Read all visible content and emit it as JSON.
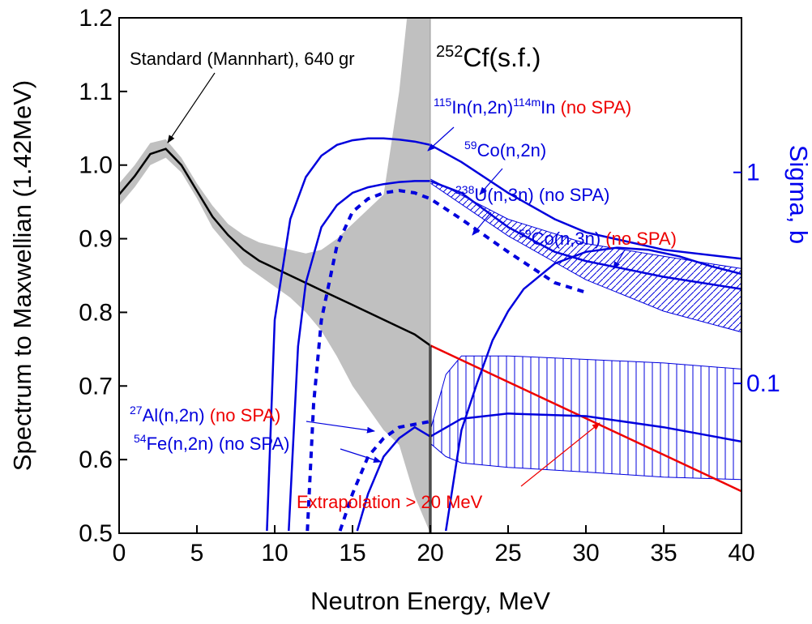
{
  "chart_data": {
    "type": "line",
    "title": {
      "sup": "252",
      "text": "Cf(s.f.)"
    },
    "xlabel": "Neutron Energy,  MeV",
    "ylabel": "Spectrum to Maxwellian (1.42MeV)",
    "y2label": "Sigma, b",
    "xlim": [
      0,
      40
    ],
    "ylim": [
      0.5,
      1.2
    ],
    "y2lim": [
      0.0195,
      5.4
    ],
    "y2scale": "log",
    "xticks": [
      0,
      5,
      10,
      15,
      20,
      25,
      30,
      35,
      40
    ],
    "yticks": [
      0.5,
      0.6,
      0.7,
      0.8,
      0.9,
      {
        "value": 1,
        "label": "1.0"
      },
      1.1,
      1.2
    ],
    "y2ticks": [
      1,
      0.1
    ],
    "y2color": "#0000ee",
    "series": [
      {
        "color": "#000000",
        "dash": "solid",
        "axis": "y",
        "x": [
          0,
          1,
          2,
          3,
          4,
          5,
          6,
          7,
          8,
          9,
          10,
          11,
          12,
          13,
          14,
          15,
          16,
          17,
          18,
          19,
          20
        ],
        "values": [
          0.96,
          0.985,
          1.015,
          1.022,
          1.0,
          0.965,
          0.93,
          0.905,
          0.885,
          0.87,
          0.86,
          0.85,
          0.84,
          0.83,
          0.82,
          0.81,
          0.8,
          0.79,
          0.78,
          0.77,
          0.755
        ]
      },
      {
        "color": "#ee0000",
        "dash": "solid",
        "axis": "y",
        "x": [
          20,
          40
        ],
        "values": [
          0.755,
          0.557
        ]
      },
      {
        "color": "#0000dd",
        "dash": "solid",
        "axis": "y2",
        "x": [
          9.5,
          10,
          11,
          12,
          13,
          14,
          15,
          16,
          17,
          18,
          19,
          20,
          22,
          25,
          28,
          30,
          35,
          40
        ],
        "values": [
          0.02,
          0.2,
          0.6,
          0.95,
          1.2,
          1.35,
          1.42,
          1.45,
          1.45,
          1.43,
          1.4,
          1.35,
          1.12,
          0.8,
          0.6,
          0.52,
          0.43,
          0.39
        ]
      },
      {
        "color": "#0000dd",
        "dash": "solid",
        "axis": "y2",
        "x": [
          10.9,
          11.5,
          12,
          13,
          14,
          15,
          16,
          17,
          18,
          19,
          20,
          22,
          25,
          28,
          30,
          35,
          40
        ],
        "values": [
          0.02,
          0.15,
          0.3,
          0.55,
          0.7,
          0.8,
          0.85,
          0.88,
          0.9,
          0.91,
          0.91,
          0.8,
          0.55,
          0.42,
          0.38,
          0.32,
          0.28
        ]
      },
      {
        "color": "#0000dd",
        "dash": "dotted",
        "axis": "y2",
        "x": [
          12.1,
          12.5,
          13,
          14,
          15,
          16,
          17,
          18,
          19,
          20,
          22,
          25,
          28,
          30
        ],
        "values": [
          0.02,
          0.08,
          0.2,
          0.45,
          0.65,
          0.75,
          0.8,
          0.82,
          0.8,
          0.75,
          0.6,
          0.42,
          0.3,
          0.27
        ]
      },
      {
        "color": "#0000dd",
        "dash": "solid",
        "axis": "y2",
        "x": [
          21,
          22,
          23,
          24,
          25,
          26,
          28,
          30,
          32,
          34,
          36,
          38,
          40
        ],
        "values": [
          0.02,
          0.06,
          0.1,
          0.16,
          0.22,
          0.28,
          0.37,
          0.42,
          0.44,
          0.43,
          0.4,
          0.36,
          0.33
        ]
      },
      {
        "color": "#0000dd",
        "dash": "solid",
        "axis": "y2",
        "x": [
          15.3,
          16,
          17,
          18,
          19,
          20,
          22,
          25,
          30,
          35,
          40
        ],
        "values": [
          0.02,
          0.03,
          0.045,
          0.055,
          0.062,
          0.056,
          0.068,
          0.072,
          0.07,
          0.062,
          0.053
        ]
      },
      {
        "color": "#0000dd",
        "dash": "dotted",
        "axis": "y2",
        "x": [
          14.2,
          15,
          16,
          17,
          18,
          19,
          20
        ],
        "values": [
          0.02,
          0.03,
          0.045,
          0.055,
          0.062,
          0.064,
          0.066
        ]
      }
    ],
    "bands": [
      {
        "fill": "#c0c0c0",
        "axis": "y",
        "x": [
          0,
          1,
          2,
          3,
          4,
          5,
          6,
          7,
          8,
          9,
          10,
          11,
          12,
          13,
          14,
          15,
          16,
          17,
          18,
          19,
          20
        ],
        "upper": [
          0.975,
          1.0,
          1.03,
          1.035,
          1.01,
          0.975,
          0.945,
          0.92,
          0.905,
          0.895,
          0.89,
          0.885,
          0.88,
          0.885,
          0.9,
          0.92,
          0.94,
          0.96,
          1.1,
          1.3,
          1.3
        ],
        "lower": [
          0.945,
          0.97,
          1.0,
          1.01,
          0.99,
          0.955,
          0.915,
          0.89,
          0.865,
          0.85,
          0.835,
          0.82,
          0.8,
          0.775,
          0.74,
          0.7,
          0.67,
          0.64,
          0.62,
          0.55,
          0.5
        ]
      },
      {
        "fill": "hatch-vertical",
        "axis": "y2",
        "x": [
          20,
          21,
          22,
          25,
          30,
          35,
          40
        ],
        "upper": [
          0.06,
          0.11,
          0.135,
          0.135,
          0.13,
          0.125,
          0.117
        ],
        "lower": [
          0.052,
          0.045,
          0.042,
          0.04,
          0.038,
          0.036,
          0.035
        ]
      },
      {
        "fill": "hatch-diagonal",
        "axis": "y2",
        "x": [
          20,
          25,
          30,
          35,
          40
        ],
        "upper": [
          0.93,
          0.6,
          0.46,
          0.4,
          0.35
        ],
        "lower": [
          0.89,
          0.5,
          0.31,
          0.22,
          0.175
        ]
      }
    ],
    "annotations": [
      {
        "parts": [
          {
            "text": "Standard (Mannhart), 640 gr",
            "color": "#000000"
          }
        ]
      },
      {
        "parts": [
          {
            "text": "115",
            "sup": true,
            "color": "#0000dd"
          },
          {
            "text": "In(n,2n)",
            "color": "#0000dd"
          },
          {
            "text": "114m",
            "sup": true,
            "color": "#0000dd"
          },
          {
            "text": "In ",
            "color": "#0000dd"
          },
          {
            "text": "(no SPA)",
            "color": "#ee0000"
          }
        ]
      },
      {
        "parts": [
          {
            "text": "59",
            "sup": true,
            "color": "#0000dd"
          },
          {
            "text": "Co(n,2n)",
            "color": "#0000dd"
          }
        ]
      },
      {
        "parts": [
          {
            "text": "238",
            "sup": true,
            "color": "#0000dd"
          },
          {
            "text": "U(n,3n) (no SPA)",
            "color": "#0000dd"
          }
        ]
      },
      {
        "parts": [
          {
            "text": "59",
            "sup": true,
            "color": "#0000dd"
          },
          {
            "text": "Co(n,3n) ",
            "color": "#0000dd"
          },
          {
            "text": "(no SPA)",
            "color": "#ee0000"
          }
        ]
      },
      {
        "parts": [
          {
            "text": "27",
            "sup": true,
            "color": "#0000dd"
          },
          {
            "text": "Al(n,2n) ",
            "color": "#0000dd"
          },
          {
            "text": "(no SPA)",
            "color": "#ee0000"
          }
        ]
      },
      {
        "parts": [
          {
            "text": "54",
            "sup": true,
            "color": "#0000dd"
          },
          {
            "text": "Fe(n,2n) (no SPA)",
            "color": "#0000dd"
          }
        ]
      },
      {
        "parts": [
          {
            "text": "Extrapolation > 20 MeV",
            "color": "#ee0000"
          }
        ]
      }
    ]
  }
}
